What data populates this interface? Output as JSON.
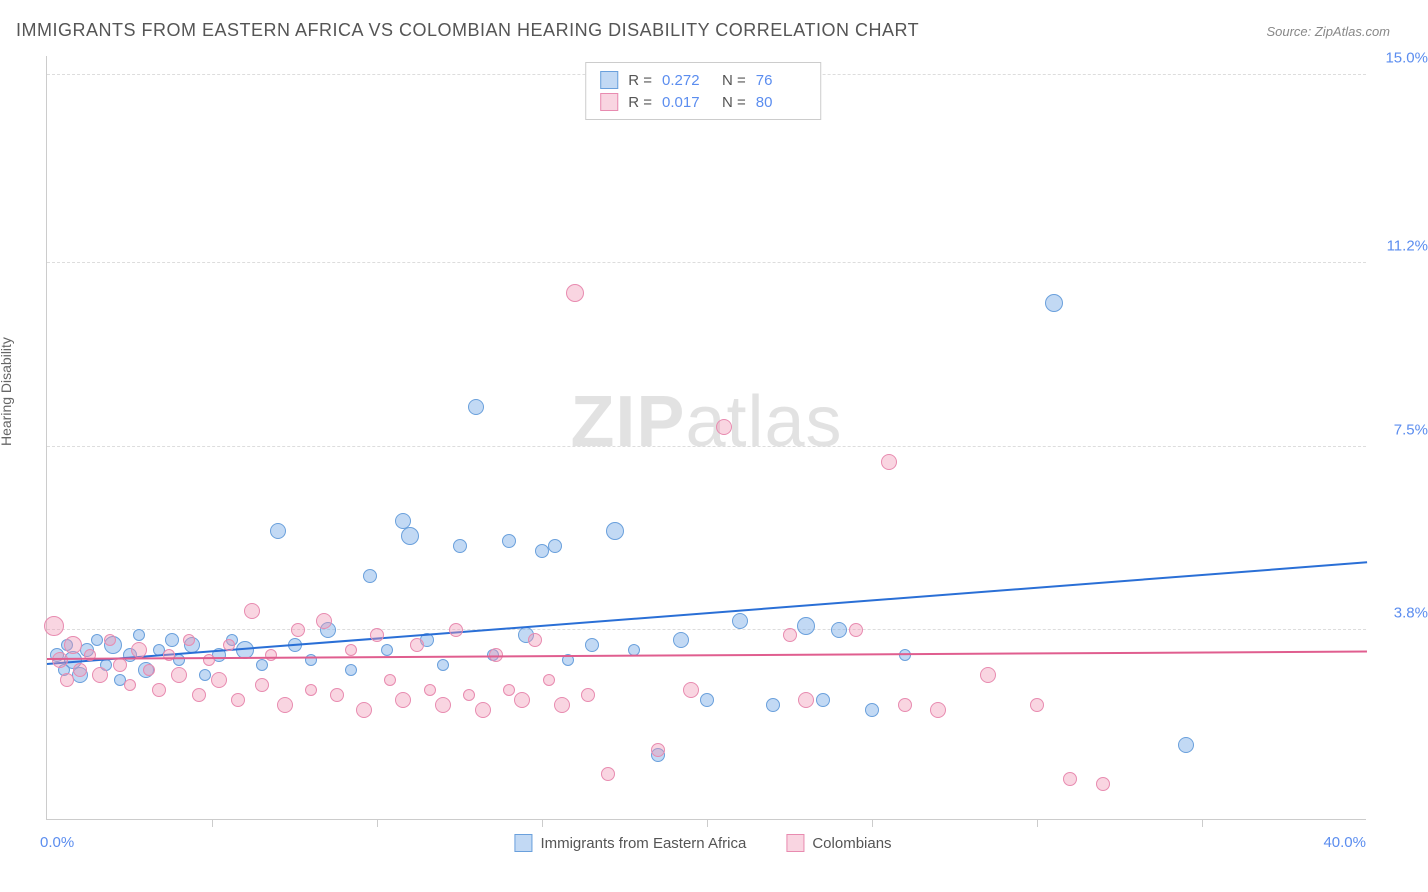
{
  "title": "IMMIGRANTS FROM EASTERN AFRICA VS COLOMBIAN HEARING DISABILITY CORRELATION CHART",
  "source": "Source: ZipAtlas.com",
  "watermark": {
    "left": "ZIP",
    "right": "atlas"
  },
  "yaxis": {
    "label": "Hearing Disability",
    "ticks": [
      {
        "value": 3.8,
        "label": "3.8%"
      },
      {
        "value": 7.5,
        "label": "7.5%"
      },
      {
        "value": 11.2,
        "label": "11.2%"
      },
      {
        "value": 15.0,
        "label": "15.0%"
      }
    ],
    "min": 0.0,
    "max": 15.4
  },
  "xaxis": {
    "min": 0.0,
    "max": 40.0,
    "min_label": "0.0%",
    "max_label": "40.0%",
    "tick_positions": [
      5,
      10,
      15,
      20,
      25,
      30,
      35
    ]
  },
  "series": [
    {
      "id": "eastern-africa",
      "label": "Immigrants from Eastern Africa",
      "color_fill": "rgba(120,170,230,0.45)",
      "color_stroke": "#6aa0dc",
      "trend_color": "#2a6fd6",
      "R": "0.272",
      "N": "76",
      "trend": {
        "x1": 0,
        "y1": 3.1,
        "x2": 40,
        "y2": 5.15
      },
      "points": [
        {
          "x": 0.3,
          "y": 3.3,
          "r": 7
        },
        {
          "x": 0.5,
          "y": 3.0,
          "r": 6
        },
        {
          "x": 0.6,
          "y": 3.5,
          "r": 6
        },
        {
          "x": 0.8,
          "y": 3.2,
          "r": 9
        },
        {
          "x": 1.0,
          "y": 2.9,
          "r": 8
        },
        {
          "x": 1.2,
          "y": 3.4,
          "r": 7
        },
        {
          "x": 1.5,
          "y": 3.6,
          "r": 6
        },
        {
          "x": 1.8,
          "y": 3.1,
          "r": 6
        },
        {
          "x": 2.0,
          "y": 3.5,
          "r": 9
        },
        {
          "x": 2.2,
          "y": 2.8,
          "r": 6
        },
        {
          "x": 2.5,
          "y": 3.3,
          "r": 7
        },
        {
          "x": 2.8,
          "y": 3.7,
          "r": 6
        },
        {
          "x": 3.0,
          "y": 3.0,
          "r": 8
        },
        {
          "x": 3.4,
          "y": 3.4,
          "r": 6
        },
        {
          "x": 3.8,
          "y": 3.6,
          "r": 7
        },
        {
          "x": 4.0,
          "y": 3.2,
          "r": 6
        },
        {
          "x": 4.4,
          "y": 3.5,
          "r": 8
        },
        {
          "x": 4.8,
          "y": 2.9,
          "r": 6
        },
        {
          "x": 5.2,
          "y": 3.3,
          "r": 7
        },
        {
          "x": 5.6,
          "y": 3.6,
          "r": 6
        },
        {
          "x": 6.0,
          "y": 3.4,
          "r": 9
        },
        {
          "x": 6.5,
          "y": 3.1,
          "r": 6
        },
        {
          "x": 7.0,
          "y": 5.8,
          "r": 8
        },
        {
          "x": 7.5,
          "y": 3.5,
          "r": 7
        },
        {
          "x": 8.0,
          "y": 3.2,
          "r": 6
        },
        {
          "x": 8.5,
          "y": 3.8,
          "r": 8
        },
        {
          "x": 9.2,
          "y": 3.0,
          "r": 6
        },
        {
          "x": 9.8,
          "y": 4.9,
          "r": 7
        },
        {
          "x": 10.3,
          "y": 3.4,
          "r": 6
        },
        {
          "x": 10.8,
          "y": 6.0,
          "r": 8
        },
        {
          "x": 11.0,
          "y": 5.7,
          "r": 9
        },
        {
          "x": 11.5,
          "y": 3.6,
          "r": 7
        },
        {
          "x": 12.0,
          "y": 3.1,
          "r": 6
        },
        {
          "x": 12.5,
          "y": 5.5,
          "r": 7
        },
        {
          "x": 13.0,
          "y": 8.3,
          "r": 8
        },
        {
          "x": 13.5,
          "y": 3.3,
          "r": 6
        },
        {
          "x": 14.0,
          "y": 5.6,
          "r": 7
        },
        {
          "x": 14.5,
          "y": 3.7,
          "r": 8
        },
        {
          "x": 15.0,
          "y": 5.4,
          "r": 7
        },
        {
          "x": 15.4,
          "y": 5.5,
          "r": 7
        },
        {
          "x": 15.8,
          "y": 3.2,
          "r": 6
        },
        {
          "x": 16.5,
          "y": 3.5,
          "r": 7
        },
        {
          "x": 17.2,
          "y": 5.8,
          "r": 9
        },
        {
          "x": 17.8,
          "y": 3.4,
          "r": 6
        },
        {
          "x": 18.5,
          "y": 1.3,
          "r": 7
        },
        {
          "x": 19.2,
          "y": 3.6,
          "r": 8
        },
        {
          "x": 20.0,
          "y": 2.4,
          "r": 7
        },
        {
          "x": 21.0,
          "y": 4.0,
          "r": 8
        },
        {
          "x": 22.0,
          "y": 2.3,
          "r": 7
        },
        {
          "x": 23.0,
          "y": 3.9,
          "r": 9
        },
        {
          "x": 23.5,
          "y": 2.4,
          "r": 7
        },
        {
          "x": 24.0,
          "y": 3.8,
          "r": 8
        },
        {
          "x": 25.0,
          "y": 2.2,
          "r": 7
        },
        {
          "x": 26.0,
          "y": 3.3,
          "r": 6
        },
        {
          "x": 30.5,
          "y": 10.4,
          "r": 9
        },
        {
          "x": 34.5,
          "y": 1.5,
          "r": 8
        }
      ]
    },
    {
      "id": "colombians",
      "label": "Colombians",
      "color_fill": "rgba(240,150,180,0.40)",
      "color_stroke": "#e88bb0",
      "trend_color": "#e05e8f",
      "R": "0.017",
      "N": "80",
      "trend": {
        "x1": 0,
        "y1": 3.2,
        "x2": 40,
        "y2": 3.35
      },
      "points": [
        {
          "x": 0.2,
          "y": 3.9,
          "r": 10
        },
        {
          "x": 0.4,
          "y": 3.2,
          "r": 8
        },
        {
          "x": 0.6,
          "y": 2.8,
          "r": 7
        },
        {
          "x": 0.8,
          "y": 3.5,
          "r": 9
        },
        {
          "x": 1.0,
          "y": 3.0,
          "r": 7
        },
        {
          "x": 1.3,
          "y": 3.3,
          "r": 6
        },
        {
          "x": 1.6,
          "y": 2.9,
          "r": 8
        },
        {
          "x": 1.9,
          "y": 3.6,
          "r": 6
        },
        {
          "x": 2.2,
          "y": 3.1,
          "r": 7
        },
        {
          "x": 2.5,
          "y": 2.7,
          "r": 6
        },
        {
          "x": 2.8,
          "y": 3.4,
          "r": 8
        },
        {
          "x": 3.1,
          "y": 3.0,
          "r": 6
        },
        {
          "x": 3.4,
          "y": 2.6,
          "r": 7
        },
        {
          "x": 3.7,
          "y": 3.3,
          "r": 6
        },
        {
          "x": 4.0,
          "y": 2.9,
          "r": 8
        },
        {
          "x": 4.3,
          "y": 3.6,
          "r": 6
        },
        {
          "x": 4.6,
          "y": 2.5,
          "r": 7
        },
        {
          "x": 4.9,
          "y": 3.2,
          "r": 6
        },
        {
          "x": 5.2,
          "y": 2.8,
          "r": 8
        },
        {
          "x": 5.5,
          "y": 3.5,
          "r": 6
        },
        {
          "x": 5.8,
          "y": 2.4,
          "r": 7
        },
        {
          "x": 6.2,
          "y": 4.2,
          "r": 8
        },
        {
          "x": 6.5,
          "y": 2.7,
          "r": 7
        },
        {
          "x": 6.8,
          "y": 3.3,
          "r": 6
        },
        {
          "x": 7.2,
          "y": 2.3,
          "r": 8
        },
        {
          "x": 7.6,
          "y": 3.8,
          "r": 7
        },
        {
          "x": 8.0,
          "y": 2.6,
          "r": 6
        },
        {
          "x": 8.4,
          "y": 4.0,
          "r": 8
        },
        {
          "x": 8.8,
          "y": 2.5,
          "r": 7
        },
        {
          "x": 9.2,
          "y": 3.4,
          "r": 6
        },
        {
          "x": 9.6,
          "y": 2.2,
          "r": 8
        },
        {
          "x": 10.0,
          "y": 3.7,
          "r": 7
        },
        {
          "x": 10.4,
          "y": 2.8,
          "r": 6
        },
        {
          "x": 10.8,
          "y": 2.4,
          "r": 8
        },
        {
          "x": 11.2,
          "y": 3.5,
          "r": 7
        },
        {
          "x": 11.6,
          "y": 2.6,
          "r": 6
        },
        {
          "x": 12.0,
          "y": 2.3,
          "r": 8
        },
        {
          "x": 12.4,
          "y": 3.8,
          "r": 7
        },
        {
          "x": 12.8,
          "y": 2.5,
          "r": 6
        },
        {
          "x": 13.2,
          "y": 2.2,
          "r": 8
        },
        {
          "x": 13.6,
          "y": 3.3,
          "r": 7
        },
        {
          "x": 14.0,
          "y": 2.6,
          "r": 6
        },
        {
          "x": 14.4,
          "y": 2.4,
          "r": 8
        },
        {
          "x": 14.8,
          "y": 3.6,
          "r": 7
        },
        {
          "x": 15.2,
          "y": 2.8,
          "r": 6
        },
        {
          "x": 15.6,
          "y": 2.3,
          "r": 8
        },
        {
          "x": 16.0,
          "y": 10.6,
          "r": 9
        },
        {
          "x": 16.4,
          "y": 2.5,
          "r": 7
        },
        {
          "x": 17.0,
          "y": 0.9,
          "r": 7
        },
        {
          "x": 18.5,
          "y": 1.4,
          "r": 7
        },
        {
          "x": 19.5,
          "y": 2.6,
          "r": 8
        },
        {
          "x": 20.5,
          "y": 7.9,
          "r": 8
        },
        {
          "x": 22.5,
          "y": 3.7,
          "r": 7
        },
        {
          "x": 23.0,
          "y": 2.4,
          "r": 8
        },
        {
          "x": 24.5,
          "y": 3.8,
          "r": 7
        },
        {
          "x": 25.5,
          "y": 7.2,
          "r": 8
        },
        {
          "x": 26.0,
          "y": 2.3,
          "r": 7
        },
        {
          "x": 27.0,
          "y": 2.2,
          "r": 8
        },
        {
          "x": 28.5,
          "y": 2.9,
          "r": 8
        },
        {
          "x": 30.0,
          "y": 2.3,
          "r": 7
        },
        {
          "x": 31.0,
          "y": 0.8,
          "r": 7
        },
        {
          "x": 32.0,
          "y": 0.7,
          "r": 7
        }
      ]
    }
  ]
}
